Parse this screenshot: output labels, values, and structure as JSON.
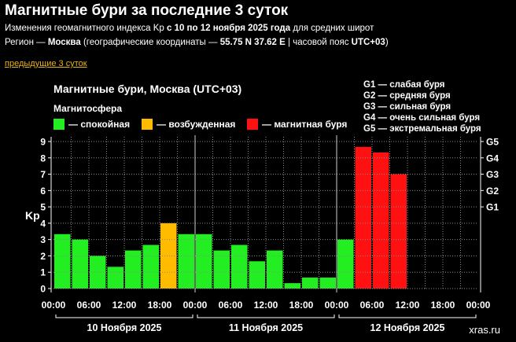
{
  "header": {
    "title": "Магнитные бури за последние 3 суток",
    "line1": {
      "part1": "Изменения геомагнитного индекса Kp ",
      "part2": "с 10 по 12 ноября 2025 года",
      "part3": " для средних широт"
    },
    "line2": {
      "part1": "Регион — ",
      "part2": "Москва",
      "part3": " (географические координаты — ",
      "part4": "55.75 N 37.62 E",
      "part5": " | часовой пояс ",
      "part6": "UTC+03",
      "part7": ")"
    },
    "prev_link": "предыдущие 3 суток"
  },
  "chart_data": {
    "type": "bar",
    "title": "Магнитные бури, Москва (UTC+03)",
    "legend_title": "Магнитосфера",
    "legend": [
      {
        "label": "— спокойная",
        "color": "#22ee22"
      },
      {
        "label": "— возбужденная",
        "color": "#ffbb00"
      },
      {
        "label": "— магнитная буря",
        "color": "#ff1111"
      }
    ],
    "g_legend": [
      "G1 — слабая буря",
      "G2 — средняя буря",
      "G3 — сильная буря",
      "G4 — очень сильная буря",
      "G5 — экстремальная буря"
    ],
    "ylabel": "Kp",
    "ylim": [
      0,
      9
    ],
    "y_ticks": [
      "0",
      "1",
      "2",
      "3",
      "4",
      "5",
      "6",
      "7",
      "8",
      "9"
    ],
    "g_ticks": [
      {
        "label": "G1",
        "kp": 5
      },
      {
        "label": "G2",
        "kp": 6
      },
      {
        "label": "G3",
        "kp": 7
      },
      {
        "label": "G4",
        "kp": 8
      },
      {
        "label": "G5",
        "kp": 9
      }
    ],
    "x_ticks": [
      "00:00",
      "06:00",
      "12:00",
      "18:00",
      "00:00",
      "06:00",
      "12:00",
      "18:00",
      "00:00",
      "06:00",
      "12:00",
      "18:00",
      "00:00"
    ],
    "days": [
      "10 Ноября 2025",
      "11 Ноября 2025",
      "12 Ноября 2025"
    ],
    "values": [
      3.33,
      3.0,
      2.0,
      1.33,
      2.33,
      2.67,
      4.0,
      3.33,
      3.33,
      2.33,
      2.67,
      1.67,
      2.33,
      0.33,
      0.67,
      0.67,
      3.0,
      8.67,
      8.33,
      7.0
    ],
    "colors": [
      "#22ee22",
      "#22ee22",
      "#22ee22",
      "#22ee22",
      "#22ee22",
      "#22ee22",
      "#ffbb00",
      "#22ee22",
      "#22ee22",
      "#22ee22",
      "#22ee22",
      "#22ee22",
      "#22ee22",
      "#22ee22",
      "#22ee22",
      "#22ee22",
      "#22ee22",
      "#ff1111",
      "#ff1111",
      "#ff1111"
    ],
    "bars_total": 24,
    "grid": true,
    "watermark": "xras.ru"
  }
}
